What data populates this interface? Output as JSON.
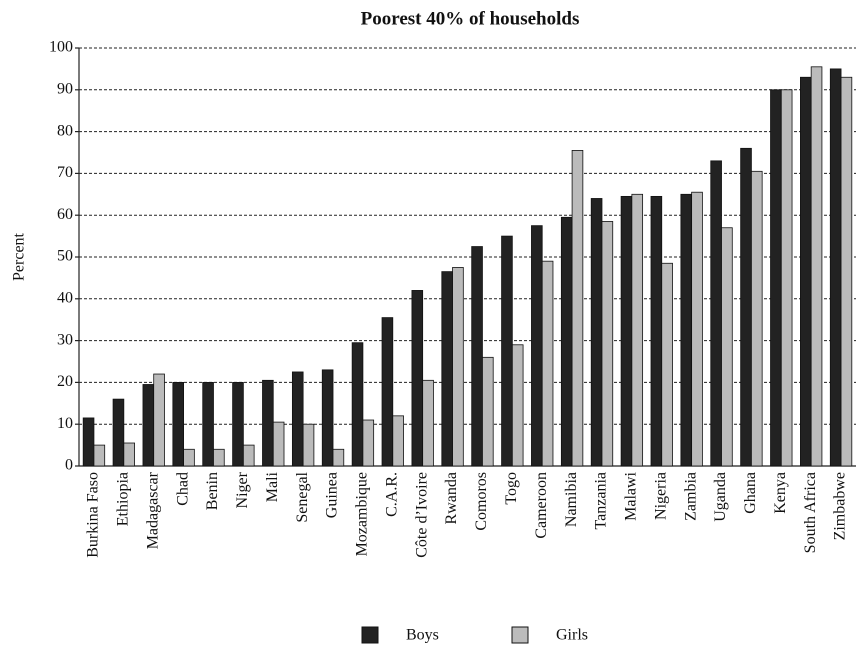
{
  "chart_data": {
    "type": "bar",
    "title": "Poorest 40% of households",
    "y_label": "Percent",
    "categories": [
      "Burkina Faso",
      "Ethiopia",
      "Madagascar",
      "Chad",
      "Benin",
      "Niger",
      "Mali",
      "Senegal",
      "Guinea",
      "Mozambique",
      "C.A.R.",
      "Côte d’Ivoire",
      "Rwanda",
      "Comoros",
      "Togo",
      "Cameroon",
      "Namibia",
      "Tanzania",
      "Malawi",
      "Nigeria",
      "Zambia",
      "Uganda",
      "Ghana",
      "Kenya",
      "South Africa",
      "Zimbabwe"
    ],
    "series": [
      {
        "name": "Boys",
        "color": "#222222",
        "values": [
          11.5,
          16,
          19.5,
          20,
          20,
          20,
          20.5,
          22.5,
          23,
          29.5,
          35.5,
          42,
          46.5,
          52.5,
          55,
          57.5,
          59.5,
          64,
          64.5,
          64.5,
          65,
          73,
          76,
          90,
          93,
          95
        ]
      },
      {
        "name": "Girls",
        "color": "#bbbbbb",
        "values": [
          5,
          5.5,
          22,
          4,
          4,
          5,
          10.5,
          10,
          4,
          11,
          12,
          20.5,
          47.5,
          26,
          29,
          49,
          75.5,
          58.5,
          65,
          48.5,
          65.5,
          57,
          70.5,
          90,
          95.5,
          93
        ]
      }
    ],
    "ylim": [
      0,
      100
    ],
    "yticks": [
      0,
      10,
      20,
      30,
      40,
      50,
      60,
      70,
      80,
      90,
      100
    ],
    "grid": true
  }
}
